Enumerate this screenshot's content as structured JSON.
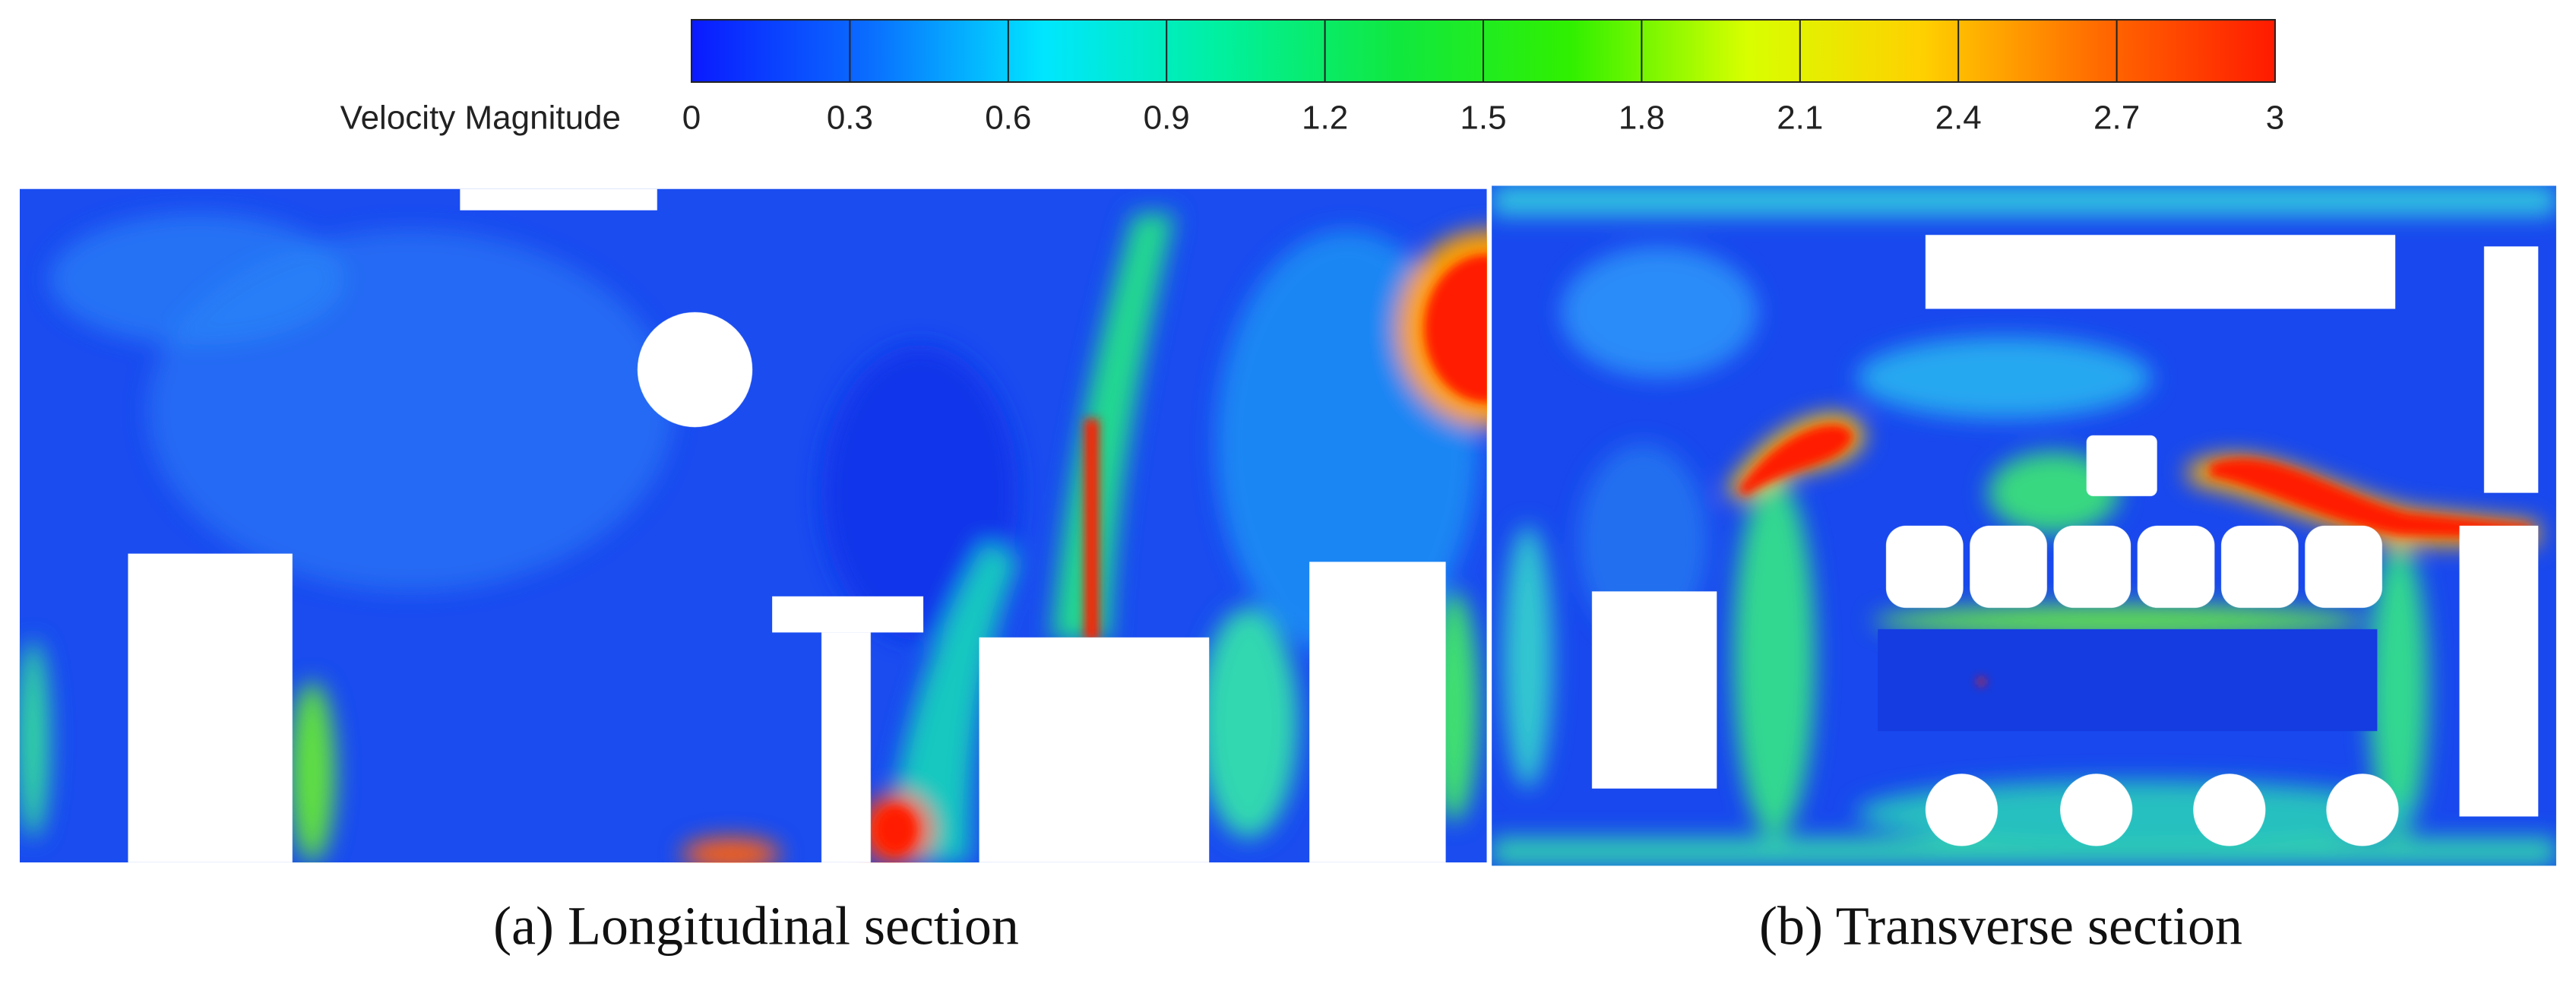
{
  "chart_data": {
    "type": "heatmap",
    "colorbar_label": "Velocity Magnitude",
    "clim": [
      0,
      3
    ],
    "ticks": [
      0,
      0.3,
      0.6,
      0.9,
      1.2,
      1.5,
      1.8,
      2.1,
      2.4,
      2.7,
      3
    ],
    "colormap": [
      "#0a1aff",
      "#0a6cff",
      "#00e6ff",
      "#00f0a0",
      "#10e840",
      "#30f000",
      "#d8ff00",
      "#ffd000",
      "#ff6a00",
      "#ff1a00"
    ],
    "panels": [
      {
        "caption": "(a) Longitudinal section"
      },
      {
        "caption": "(b) Transverse section"
      }
    ]
  }
}
